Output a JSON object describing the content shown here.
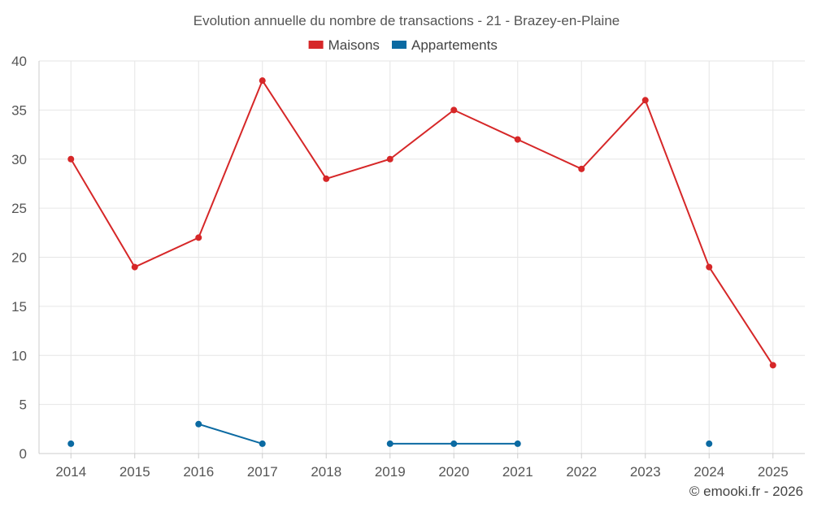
{
  "chart_data": {
    "type": "line",
    "title": "Evolution annuelle du nombre de transactions - 21 - Brazey-en-Plaine",
    "xlabel": "",
    "ylabel": "",
    "ylim": [
      0,
      40
    ],
    "yticks": [
      0,
      5,
      10,
      15,
      20,
      25,
      30,
      35,
      40
    ],
    "categories": [
      "2014",
      "2015",
      "2016",
      "2017",
      "2018",
      "2019",
      "2020",
      "2021",
      "2022",
      "2023",
      "2024",
      "2025"
    ],
    "series": [
      {
        "name": "Maisons",
        "color": "#d62728",
        "values": [
          30,
          19,
          22,
          38,
          28,
          30,
          35,
          32,
          29,
          36,
          19,
          9
        ]
      },
      {
        "name": "Appartements",
        "color": "#0b6aa2",
        "values": [
          1,
          null,
          3,
          1,
          null,
          1,
          1,
          1,
          null,
          null,
          1,
          null
        ]
      }
    ],
    "legend_position": "top-center",
    "grid": true
  },
  "credit": "© emooki.fr - 2026"
}
